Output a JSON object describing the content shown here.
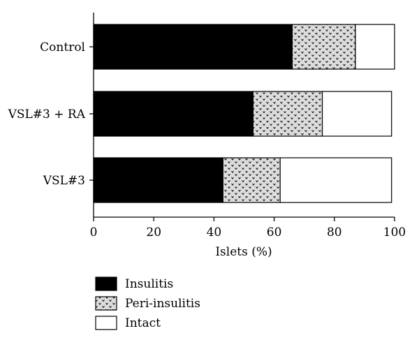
{
  "chart_data": {
    "type": "bar",
    "orientation": "horizontal",
    "stacked": true,
    "categories": [
      "Control",
      "VSL#3 + RA",
      "VSL#3"
    ],
    "series": [
      {
        "name": "Insulitis",
        "values": [
          66,
          53,
          43
        ],
        "color": "#000000",
        "fill": "solid"
      },
      {
        "name": "Peri-insulitis",
        "values": [
          21,
          23,
          19
        ],
        "color": "#d9d9d9",
        "fill": "dotted-pattern"
      },
      {
        "name": "Intact",
        "values": [
          13,
          23,
          37
        ],
        "color": "#ffffff",
        "fill": "solid"
      }
    ],
    "xlabel": "Islets (%)",
    "xlim": [
      0,
      100
    ],
    "xticks": [
      "0",
      "20",
      "40",
      "60",
      "80",
      "100"
    ],
    "grid": false,
    "legend_position": "bottom-left"
  }
}
